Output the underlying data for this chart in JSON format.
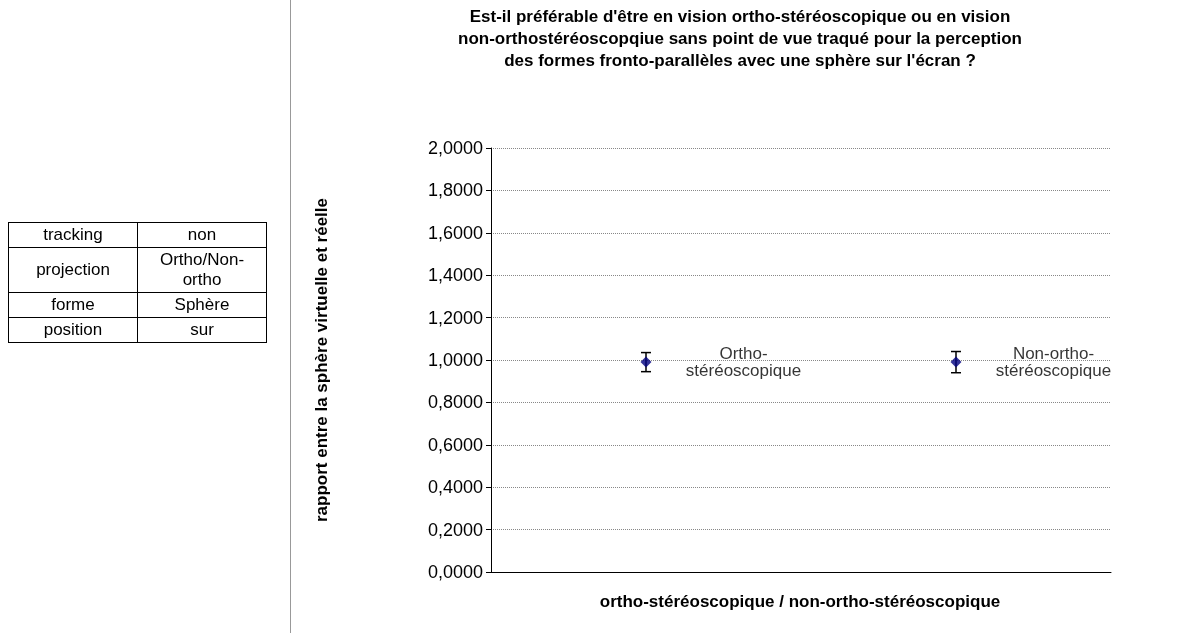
{
  "chart_data": [
    {
      "type": "other",
      "annotations": [
        "tracking",
        "non",
        "projection",
        "Ortho/Non-ortho",
        "forme",
        "Sphère",
        "position",
        "sur"
      ]
    },
    {
      "type": "scatter",
      "title": "Est-il préférable d'être en vision ortho-stéréoscopique ou en vision non-orthostéréoscopqiue sans point de vue traqué pour la perception des formes fronto-parallèles avec une  sphère sur l'écran ?",
      "xlabel": "ortho-stéréoscopique / non-ortho-stéréoscopique",
      "ylabel": "rapport entre la sphère virtuelle et réelle",
      "categories": [
        "Ortho-stéréoscopique",
        "Non-ortho-stéréoscopique"
      ],
      "values": [
        0.99,
        0.99
      ],
      "errors": [
        0.045,
        0.05
      ],
      "color": "#000080",
      "marker": "diamond",
      "ylim": [
        0,
        2
      ],
      "yticks": [
        {
          "value": 0,
          "label": "0,0000"
        },
        {
          "value": 0.2,
          "label": "0,2000"
        },
        {
          "value": 0.4,
          "label": "0,4000"
        },
        {
          "value": 0.6,
          "label": "0,6000"
        },
        {
          "value": 0.8,
          "label": "0,8000"
        },
        {
          "value": 1,
          "label": "1,0000"
        },
        {
          "value": 1.2,
          "label": "1,2000"
        },
        {
          "value": 1.4,
          "label": "1,4000"
        },
        {
          "value": 1.6,
          "label": "1,6000"
        },
        {
          "value": 1.8,
          "label": "1,8000"
        },
        {
          "value": 2,
          "label": "2,0000"
        }
      ],
      "grid": "y",
      "tick_labels": "y"
    }
  ]
}
